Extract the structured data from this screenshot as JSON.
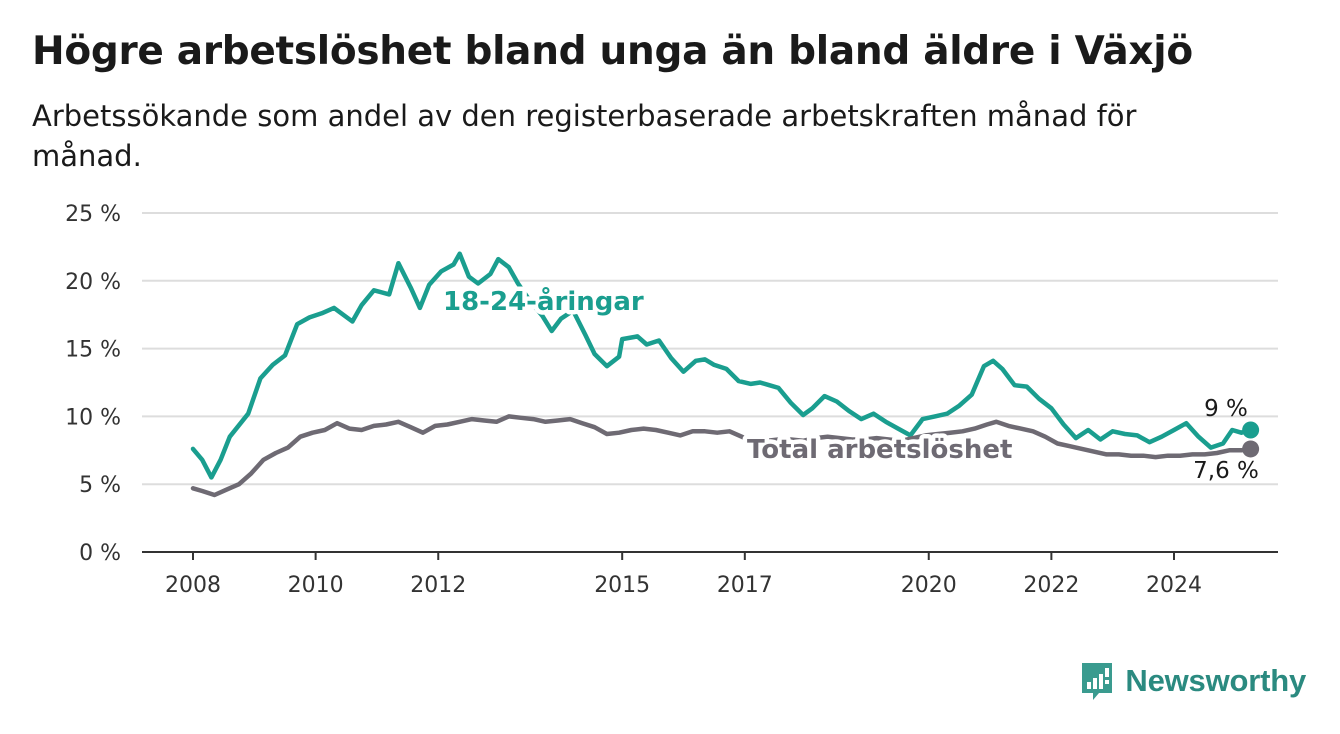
{
  "title": "Högre arbetslöshet bland unga än bland äldre i Växjö",
  "subtitle": "Arbetssökande som andel av den registerbaserade arbetskraften månad för månad.",
  "brand": "Newsworthy",
  "colors": {
    "young": "#1a9e8f",
    "total": "#6e6a73",
    "grid": "#dddddd",
    "axis": "#333333"
  },
  "chart_data": {
    "type": "line",
    "y_ticks": [
      "0 %",
      "5 %",
      "10 %",
      "15 %",
      "20 %",
      "25 %"
    ],
    "x_ticks": [
      "2008",
      "2010",
      "2012",
      "2015",
      "2017",
      "2020",
      "2022",
      "2024"
    ],
    "ylim": [
      0,
      25
    ],
    "xlim": [
      2007.2,
      2025.8
    ],
    "grid": true,
    "series": [
      {
        "name": "18-24-åringar",
        "color": "#1a9e8f",
        "end_label": "9 %",
        "points": [
          [
            2008.0,
            7.6
          ],
          [
            2008.15,
            6.8
          ],
          [
            2008.3,
            5.5
          ],
          [
            2008.45,
            6.8
          ],
          [
            2008.6,
            8.5
          ],
          [
            2008.9,
            10.2
          ],
          [
            2009.1,
            12.8
          ],
          [
            2009.3,
            13.8
          ],
          [
            2009.5,
            14.5
          ],
          [
            2009.7,
            16.8
          ],
          [
            2009.9,
            17.3
          ],
          [
            2010.1,
            17.6
          ],
          [
            2010.3,
            18.0
          ],
          [
            2010.6,
            17.0
          ],
          [
            2010.75,
            18.2
          ],
          [
            2010.95,
            19.3
          ],
          [
            2011.2,
            19.0
          ],
          [
            2011.35,
            21.3
          ],
          [
            2011.55,
            19.5
          ],
          [
            2011.7,
            18.0
          ],
          [
            2011.85,
            19.7
          ],
          [
            2012.05,
            20.7
          ],
          [
            2012.25,
            21.2
          ],
          [
            2012.35,
            22.0
          ],
          [
            2012.5,
            20.3
          ],
          [
            2012.65,
            19.8
          ],
          [
            2012.85,
            20.5
          ],
          [
            2012.98,
            21.6
          ],
          [
            2013.15,
            21.0
          ],
          [
            2013.3,
            19.8
          ],
          [
            2013.5,
            18.5
          ],
          [
            2013.7,
            17.4
          ],
          [
            2013.85,
            16.3
          ],
          [
            2014.0,
            17.2
          ],
          [
            2014.2,
            17.8
          ],
          [
            2014.4,
            16.0
          ],
          [
            2014.55,
            14.6
          ],
          [
            2014.75,
            13.7
          ],
          [
            2014.95,
            14.4
          ],
          [
            2015.0,
            15.7
          ],
          [
            2015.25,
            15.9
          ],
          [
            2015.4,
            15.3
          ],
          [
            2015.6,
            15.6
          ],
          [
            2015.8,
            14.3
          ],
          [
            2016.0,
            13.3
          ],
          [
            2016.2,
            14.1
          ],
          [
            2016.35,
            14.2
          ],
          [
            2016.5,
            13.8
          ],
          [
            2016.7,
            13.5
          ],
          [
            2016.9,
            12.6
          ],
          [
            2017.1,
            12.4
          ],
          [
            2017.25,
            12.5
          ],
          [
            2017.4,
            12.3
          ],
          [
            2017.55,
            12.1
          ],
          [
            2017.75,
            11.0
          ],
          [
            2017.95,
            10.1
          ],
          [
            2018.1,
            10.6
          ],
          [
            2018.3,
            11.5
          ],
          [
            2018.5,
            11.1
          ],
          [
            2018.7,
            10.4
          ],
          [
            2018.9,
            9.8
          ],
          [
            2019.1,
            10.2
          ],
          [
            2019.3,
            9.6
          ],
          [
            2019.5,
            9.1
          ],
          [
            2019.7,
            8.6
          ],
          [
            2019.9,
            9.8
          ],
          [
            2020.1,
            10.0
          ],
          [
            2020.3,
            10.2
          ],
          [
            2020.5,
            10.8
          ],
          [
            2020.7,
            11.6
          ],
          [
            2020.9,
            13.7
          ],
          [
            2021.05,
            14.1
          ],
          [
            2021.2,
            13.5
          ],
          [
            2021.4,
            12.3
          ],
          [
            2021.6,
            12.2
          ],
          [
            2021.8,
            11.3
          ],
          [
            2022.0,
            10.6
          ],
          [
            2022.2,
            9.4
          ],
          [
            2022.4,
            8.4
          ],
          [
            2022.6,
            9.0
          ],
          [
            2022.8,
            8.3
          ],
          [
            2023.0,
            8.9
          ],
          [
            2023.2,
            8.7
          ],
          [
            2023.4,
            8.6
          ],
          [
            2023.6,
            8.1
          ],
          [
            2023.8,
            8.5
          ],
          [
            2024.0,
            9.0
          ],
          [
            2024.2,
            9.5
          ],
          [
            2024.4,
            8.5
          ],
          [
            2024.6,
            7.7
          ],
          [
            2024.8,
            8.0
          ],
          [
            2024.95,
            9.0
          ],
          [
            2025.1,
            8.8
          ],
          [
            2025.25,
            9.0
          ]
        ]
      },
      {
        "name": "Total arbetslöshet",
        "color": "#6e6a73",
        "end_label": "7,6 %",
        "points": [
          [
            2008.0,
            4.7
          ],
          [
            2008.15,
            4.5
          ],
          [
            2008.35,
            4.2
          ],
          [
            2008.55,
            4.6
          ],
          [
            2008.75,
            5.0
          ],
          [
            2008.95,
            5.8
          ],
          [
            2009.15,
            6.8
          ],
          [
            2009.35,
            7.3
          ],
          [
            2009.55,
            7.7
          ],
          [
            2009.75,
            8.5
          ],
          [
            2009.95,
            8.8
          ],
          [
            2010.15,
            9.0
          ],
          [
            2010.35,
            9.5
          ],
          [
            2010.55,
            9.1
          ],
          [
            2010.75,
            9.0
          ],
          [
            2010.95,
            9.3
          ],
          [
            2011.15,
            9.4
          ],
          [
            2011.35,
            9.6
          ],
          [
            2011.55,
            9.2
          ],
          [
            2011.75,
            8.8
          ],
          [
            2011.95,
            9.3
          ],
          [
            2012.15,
            9.4
          ],
          [
            2012.35,
            9.6
          ],
          [
            2012.55,
            9.8
          ],
          [
            2012.75,
            9.7
          ],
          [
            2012.95,
            9.6
          ],
          [
            2013.15,
            10.0
          ],
          [
            2013.35,
            9.9
          ],
          [
            2013.55,
            9.8
          ],
          [
            2013.75,
            9.6
          ],
          [
            2013.95,
            9.7
          ],
          [
            2014.15,
            9.8
          ],
          [
            2014.35,
            9.5
          ],
          [
            2014.55,
            9.2
          ],
          [
            2014.75,
            8.7
          ],
          [
            2014.95,
            8.8
          ],
          [
            2015.15,
            9.0
          ],
          [
            2015.35,
            9.1
          ],
          [
            2015.55,
            9.0
          ],
          [
            2015.75,
            8.8
          ],
          [
            2015.95,
            8.6
          ],
          [
            2016.15,
            8.9
          ],
          [
            2016.35,
            8.9
          ],
          [
            2016.55,
            8.8
          ],
          [
            2016.75,
            8.9
          ],
          [
            2016.95,
            8.5
          ],
          [
            2017.15,
            8.1
          ],
          [
            2017.35,
            8.2
          ],
          [
            2017.55,
            8.3
          ],
          [
            2017.75,
            8.3
          ],
          [
            2017.95,
            8.2
          ],
          [
            2018.15,
            8.4
          ],
          [
            2018.35,
            8.5
          ],
          [
            2018.55,
            8.4
          ],
          [
            2018.75,
            8.3
          ],
          [
            2018.95,
            8.3
          ],
          [
            2019.15,
            8.4
          ],
          [
            2019.35,
            8.3
          ],
          [
            2019.55,
            8.2
          ],
          [
            2019.75,
            8.4
          ],
          [
            2019.95,
            8.6
          ],
          [
            2020.15,
            8.7
          ],
          [
            2020.35,
            8.8
          ],
          [
            2020.55,
            8.9
          ],
          [
            2020.75,
            9.1
          ],
          [
            2020.95,
            9.4
          ],
          [
            2021.1,
            9.6
          ],
          [
            2021.3,
            9.3
          ],
          [
            2021.5,
            9.1
          ],
          [
            2021.7,
            8.9
          ],
          [
            2021.9,
            8.5
          ],
          [
            2022.1,
            8.0
          ],
          [
            2022.3,
            7.8
          ],
          [
            2022.5,
            7.6
          ],
          [
            2022.7,
            7.4
          ],
          [
            2022.9,
            7.2
          ],
          [
            2023.1,
            7.2
          ],
          [
            2023.3,
            7.1
          ],
          [
            2023.5,
            7.1
          ],
          [
            2023.7,
            7.0
          ],
          [
            2023.9,
            7.1
          ],
          [
            2024.1,
            7.1
          ],
          [
            2024.3,
            7.2
          ],
          [
            2024.5,
            7.2
          ],
          [
            2024.7,
            7.3
          ],
          [
            2024.9,
            7.5
          ],
          [
            2025.1,
            7.5
          ],
          [
            2025.25,
            7.6
          ]
        ]
      }
    ]
  }
}
